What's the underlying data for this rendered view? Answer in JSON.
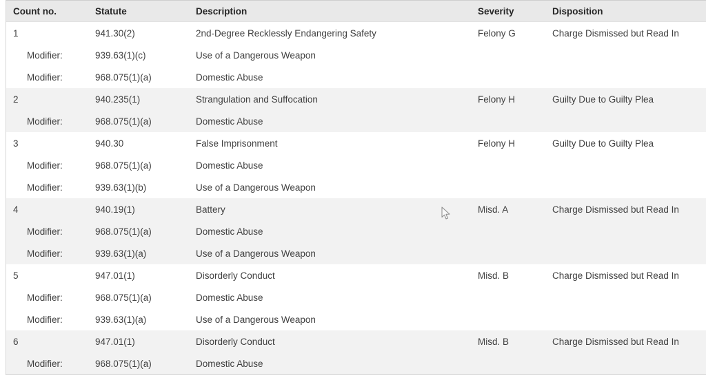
{
  "colors": {
    "header_bg": "#e9e9e9",
    "stripe_bg": "#f2f2f2",
    "body_text": "#3f3f3f",
    "header_text": "#262626",
    "border": "#d6d6d6"
  },
  "table": {
    "headers": [
      "Count no.",
      "Statute",
      "Description",
      "Severity",
      "Disposition"
    ],
    "modifier_label": "Modifier:",
    "counts": [
      {
        "number": "1",
        "statute": "941.30(2)",
        "description": "2nd-Degree Recklessly Endangering Safety",
        "severity": "Felony G",
        "disposition": "Charge Dismissed but Read In",
        "modifiers": [
          {
            "statute": "939.63(1)(c)",
            "description": "Use of a Dangerous Weapon"
          },
          {
            "statute": "968.075(1)(a)",
            "description": "Domestic Abuse"
          }
        ]
      },
      {
        "number": "2",
        "statute": "940.235(1)",
        "description": "Strangulation and Suffocation",
        "severity": "Felony H",
        "disposition": "Guilty Due to Guilty Plea",
        "modifiers": [
          {
            "statute": "968.075(1)(a)",
            "description": "Domestic Abuse"
          }
        ]
      },
      {
        "number": "3",
        "statute": "940.30",
        "description": "False Imprisonment",
        "severity": "Felony H",
        "disposition": "Guilty Due to Guilty Plea",
        "modifiers": [
          {
            "statute": "968.075(1)(a)",
            "description": "Domestic Abuse"
          },
          {
            "statute": "939.63(1)(b)",
            "description": "Use of a Dangerous Weapon"
          }
        ]
      },
      {
        "number": "4",
        "statute": "940.19(1)",
        "description": "Battery",
        "severity": "Misd. A",
        "disposition": "Charge Dismissed but Read In",
        "modifiers": [
          {
            "statute": "968.075(1)(a)",
            "description": "Domestic Abuse"
          },
          {
            "statute": "939.63(1)(a)",
            "description": "Use of a Dangerous Weapon"
          }
        ]
      },
      {
        "number": "5",
        "statute": "947.01(1)",
        "description": "Disorderly Conduct",
        "severity": "Misd. B",
        "disposition": "Charge Dismissed but Read In",
        "modifiers": [
          {
            "statute": "968.075(1)(a)",
            "description": "Domestic Abuse"
          },
          {
            "statute": "939.63(1)(a)",
            "description": "Use of a Dangerous Weapon"
          }
        ]
      },
      {
        "number": "6",
        "statute": "947.01(1)",
        "description": "Disorderly Conduct",
        "severity": "Misd. B",
        "disposition": "Charge Dismissed but Read In",
        "modifiers": [
          {
            "statute": "968.075(1)(a)",
            "description": "Domestic Abuse"
          }
        ]
      }
    ]
  }
}
